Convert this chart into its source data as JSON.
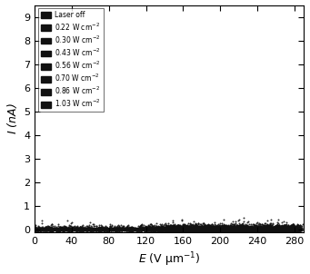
{
  "title": "",
  "xlabel": "$E$ (V μm$^{-1}$)",
  "ylabel": "$I$ (nA)",
  "xlim": [
    0,
    290
  ],
  "ylim": [
    -0.15,
    9.5
  ],
  "xticks": [
    0,
    40,
    80,
    120,
    160,
    200,
    240,
    280
  ],
  "yticks": [
    0,
    1,
    2,
    3,
    4,
    5,
    6,
    7,
    8,
    9
  ],
  "legend_labels": [
    "Laser off",
    "0.22 W cm$^{-2}$",
    "0.30 W cm$^{-2}$",
    "0.43 W cm$^{-2}$",
    "0.56 W cm$^{-2}$",
    "0.70 W cm$^{-2}$",
    "0.86 W cm$^{-2}$",
    "1.03 W cm$^{-2}$"
  ],
  "scatter_size": 2.0,
  "dot_color": "#111111",
  "background_color": "#ffffff",
  "curve_params": [
    {
      "E_thresh": 160,
      "A": 2.5e-07,
      "b": 800,
      "noise_I": 0.04,
      "noise_E": 2.0,
      "n_pts": 1200
    },
    {
      "E_thresh": 155,
      "A": 3.5e-07,
      "b": 780,
      "noise_I": 0.06,
      "noise_E": 2.5,
      "n_pts": 1000
    },
    {
      "E_thresh": 150,
      "A": 5e-07,
      "b": 760,
      "noise_I": 0.07,
      "noise_E": 2.5,
      "n_pts": 900
    },
    {
      "E_thresh": 145,
      "A": 7e-07,
      "b": 740,
      "noise_I": 0.08,
      "noise_E": 2.5,
      "n_pts": 900
    },
    {
      "E_thresh": 140,
      "A": 9e-07,
      "b": 720,
      "noise_I": 0.09,
      "noise_E": 2.5,
      "n_pts": 800
    },
    {
      "E_thresh": 135,
      "A": 1.2e-06,
      "b": 700,
      "noise_I": 0.1,
      "noise_E": 2.5,
      "n_pts": 800
    },
    {
      "E_thresh": 130,
      "A": 1.6e-06,
      "b": 680,
      "noise_I": 0.11,
      "noise_E": 2.5,
      "n_pts": 800
    },
    {
      "E_thresh": 120,
      "A": 2.5e-06,
      "b": 650,
      "noise_I": 0.13,
      "noise_E": 3.0,
      "n_pts": 800
    }
  ]
}
